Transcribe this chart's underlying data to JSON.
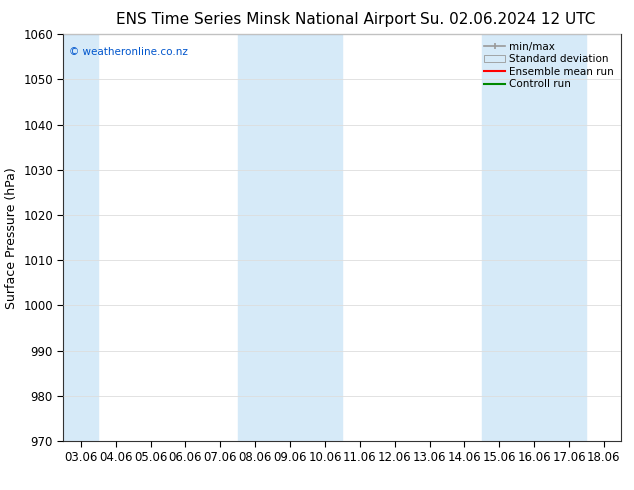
{
  "title_left": "ENS Time Series Minsk National Airport",
  "title_right": "Su. 02.06.2024 12 UTC",
  "ylabel": "Surface Pressure (hPa)",
  "ylim": [
    970,
    1060
  ],
  "yticks": [
    970,
    980,
    990,
    1000,
    1010,
    1020,
    1030,
    1040,
    1050,
    1060
  ],
  "xlabels": [
    "03.06",
    "04.06",
    "05.06",
    "06.06",
    "07.06",
    "08.06",
    "09.06",
    "10.06",
    "11.06",
    "12.06",
    "13.06",
    "14.06",
    "15.06",
    "16.06",
    "17.06",
    "18.06"
  ],
  "watermark": "© weatheronline.co.nz",
  "watermark_color": "#0055cc",
  "bg_color": "#ffffff",
  "plot_bg_color": "#ffffff",
  "shaded_color": "#d6eaf8",
  "legend_entries": [
    "min/max",
    "Standard deviation",
    "Ensemble mean run",
    "Controll run"
  ],
  "legend_line_colors": [
    "#999999",
    "#bbbbbb",
    "#ff0000",
    "#008800"
  ],
  "title_fontsize": 11,
  "tick_fontsize": 8.5,
  "ylabel_fontsize": 9
}
